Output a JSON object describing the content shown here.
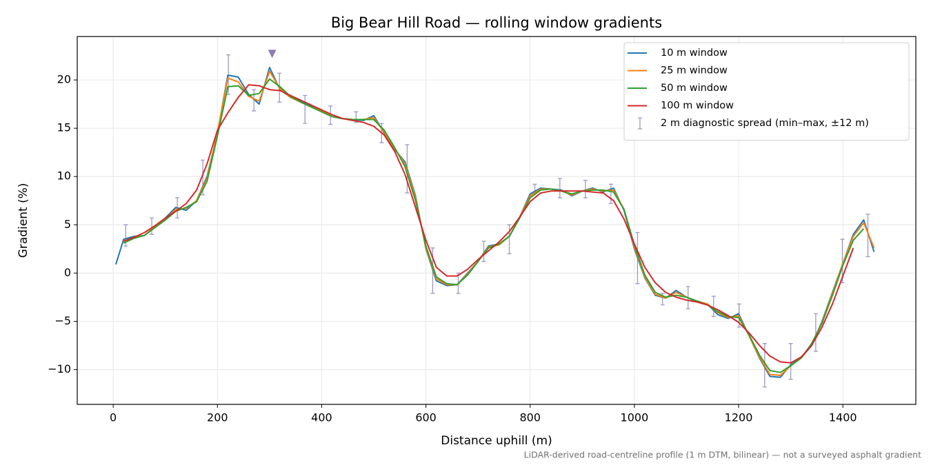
{
  "chart_data": {
    "type": "line",
    "title": "Big Bear Hill Road — rolling window gradients",
    "xlabel": "Distance uphill (m)",
    "ylabel": "Gradient (%)",
    "footnote": "LiDAR-derived road-centreline profile (1 m DTM, bilinear) — not a surveyed asphalt gradient",
    "xlim": [
      -69,
      1540
    ],
    "ylim": [
      -13.6,
      24.5
    ],
    "xticks": [
      0,
      200,
      400,
      600,
      800,
      1000,
      1200,
      1400
    ],
    "yticks": [
      {
        "value": -10,
        "label": "−10"
      },
      {
        "value": -5,
        "label": "−5"
      },
      0,
      5,
      10,
      15,
      20
    ],
    "grid": true,
    "legend": "upper right",
    "x": [
      5,
      20,
      40,
      60,
      80,
      100,
      120,
      140,
      160,
      180,
      200,
      220,
      240,
      260,
      280,
      300,
      320,
      340,
      360,
      380,
      400,
      420,
      440,
      460,
      480,
      500,
      520,
      540,
      560,
      580,
      600,
      620,
      640,
      660,
      680,
      700,
      720,
      740,
      760,
      780,
      800,
      820,
      840,
      860,
      880,
      900,
      920,
      940,
      960,
      980,
      1000,
      1020,
      1040,
      1060,
      1080,
      1100,
      1120,
      1140,
      1160,
      1180,
      1200,
      1220,
      1240,
      1260,
      1280,
      1300,
      1320,
      1340,
      1360,
      1380,
      1400,
      1420,
      1440,
      1460
    ],
    "series": [
      {
        "name": "10 m window",
        "color": "#1f77b4",
        "values": [
          0.9,
          3.5,
          3.8,
          3.9,
          4.8,
          5.7,
          6.8,
          6.5,
          7.5,
          10,
          14.5,
          20.5,
          20.3,
          18.5,
          17.5,
          21.3,
          19,
          18.2,
          17.8,
          17.3,
          16.8,
          16.2,
          16,
          15.9,
          15.8,
          16.3,
          14.5,
          12.8,
          11.5,
          8,
          2.5,
          -0.8,
          -1.3,
          -1.2,
          0,
          1.2,
          2.8,
          3,
          3.8,
          5.8,
          8.2,
          8.8,
          8.7,
          8.6,
          8,
          8.5,
          8.8,
          8.4,
          8.8,
          6.5,
          2.5,
          -0.5,
          -2.3,
          -2.6,
          -1.8,
          -2.5,
          -3,
          -3.2,
          -4.3,
          -4.7,
          -4.2,
          -6.5,
          -8.8,
          -10.7,
          -10.8,
          -9.5,
          -8.8,
          -7.5,
          -5,
          -2,
          1,
          4,
          5.5,
          2.2
        ]
      },
      {
        "name": "25 m window",
        "color": "#ff7f0e",
        "values": [
          null,
          3.2,
          3.7,
          3.9,
          4.8,
          5.6,
          6.6,
          6.7,
          7.5,
          9.8,
          14.6,
          20.2,
          19.8,
          18.3,
          17.8,
          20.9,
          19.1,
          18.2,
          17.7,
          17.2,
          16.8,
          16.2,
          16,
          15.9,
          15.9,
          16.1,
          14.6,
          12.9,
          11.3,
          7.8,
          2.6,
          -0.6,
          -1.2,
          -1.2,
          -0.1,
          1.2,
          2.7,
          2.9,
          3.8,
          5.8,
          8,
          8.7,
          8.7,
          8.5,
          8.1,
          8.5,
          8.7,
          8.5,
          8.6,
          6.6,
          2.7,
          -0.4,
          -2.2,
          -2.6,
          -2,
          -2.5,
          -2.9,
          -3.2,
          -4.1,
          -4.6,
          -4.4,
          -6.5,
          -8.7,
          -10.5,
          -10.6,
          -9.6,
          -8.8,
          -7.4,
          -5.1,
          -2.1,
          1,
          3.8,
          5.2,
          2.6
        ]
      },
      {
        "name": "50 m window",
        "color": "#2ca02c",
        "values": [
          null,
          3.1,
          3.6,
          3.9,
          4.7,
          5.5,
          6.4,
          6.8,
          7.4,
          9.5,
          14.2,
          19.3,
          19.4,
          18.4,
          18.6,
          20.1,
          19.3,
          18.3,
          17.7,
          17.2,
          16.7,
          16.2,
          16,
          15.9,
          15.9,
          15.9,
          14.8,
          13,
          11,
          7.5,
          2.8,
          -0.4,
          -1.1,
          -1.2,
          -0.2,
          1.2,
          2.6,
          3,
          3.8,
          5.7,
          7.8,
          8.6,
          8.7,
          8.5,
          8.2,
          8.5,
          8.6,
          8.6,
          8.4,
          6.6,
          2.9,
          -0.2,
          -2,
          -2.5,
          -2.3,
          -2.5,
          -2.9,
          -3.3,
          -4,
          -4.5,
          -4.6,
          -6.4,
          -8.5,
          -10.1,
          -10.3,
          -9.6,
          -8.8,
          -7.3,
          -5.2,
          -2.3,
          0.8,
          3.4,
          4.6,
          null
        ]
      },
      {
        "name": "100 m window",
        "color": "#d62728",
        "values": [
          null,
          3.3,
          3.7,
          4.2,
          4.9,
          5.7,
          6.4,
          7.2,
          8.6,
          11.3,
          14.8,
          16.6,
          18.2,
          19.5,
          19.4,
          19,
          18.9,
          18.4,
          17.9,
          17.4,
          16.9,
          16.4,
          16,
          15.8,
          15.6,
          15.2,
          14.3,
          12.6,
          10.2,
          6.8,
          3.4,
          0.6,
          -0.3,
          -0.3,
          0.4,
          1.4,
          2.3,
          3.2,
          4.3,
          5.8,
          7.4,
          8.3,
          8.5,
          8.5,
          8.5,
          8.5,
          8.4,
          8.3,
          7.5,
          5.6,
          3,
          0.6,
          -1,
          -2,
          -2.5,
          -2.8,
          -3,
          -3.3,
          -3.8,
          -4.4,
          -5.1,
          -6.2,
          -7.5,
          -8.6,
          -9.2,
          -9.3,
          -8.7,
          -7.5,
          -5.6,
          -3.2,
          -0.3,
          2.6,
          null,
          null
        ]
      }
    ],
    "errorbars": {
      "name": "2 m diagnostic spread (min–max, ±12 m)",
      "color": "#9d98c4",
      "x": [
        24,
        74,
        123,
        172,
        221,
        270,
        319,
        368,
        417,
        466,
        515,
        564,
        613,
        662,
        711,
        760,
        809,
        857,
        906,
        955,
        1006,
        1054,
        1103,
        1152,
        1201,
        1250,
        1300,
        1348,
        1399,
        1448
      ],
      "low": [
        2.8,
        4,
        5.7,
        8.1,
        18.5,
        16.8,
        17.7,
        15.5,
        15.4,
        15.6,
        13.5,
        8.3,
        -2.1,
        -2.1,
        1.2,
        2,
        8.4,
        7.8,
        7.8,
        7.2,
        -1.1,
        -3.3,
        -3.7,
        -4.5,
        -5.6,
        -11.8,
        -11,
        -8.1,
        -1,
        1.7
      ],
      "high": [
        5,
        5.7,
        7.8,
        11.7,
        22.6,
        19,
        20.7,
        18.4,
        17.3,
        16.7,
        15.5,
        13.3,
        2.6,
        0,
        3.3,
        5,
        9.2,
        9.8,
        9.6,
        9.2,
        4.2,
        -2.1,
        -1.4,
        -2.4,
        -3.2,
        -7.3,
        -7.3,
        -4.2,
        3.5,
        6.1
      ]
    },
    "marker": {
      "x": 305,
      "y": 22.7,
      "color": "#8c7bb5"
    }
  }
}
